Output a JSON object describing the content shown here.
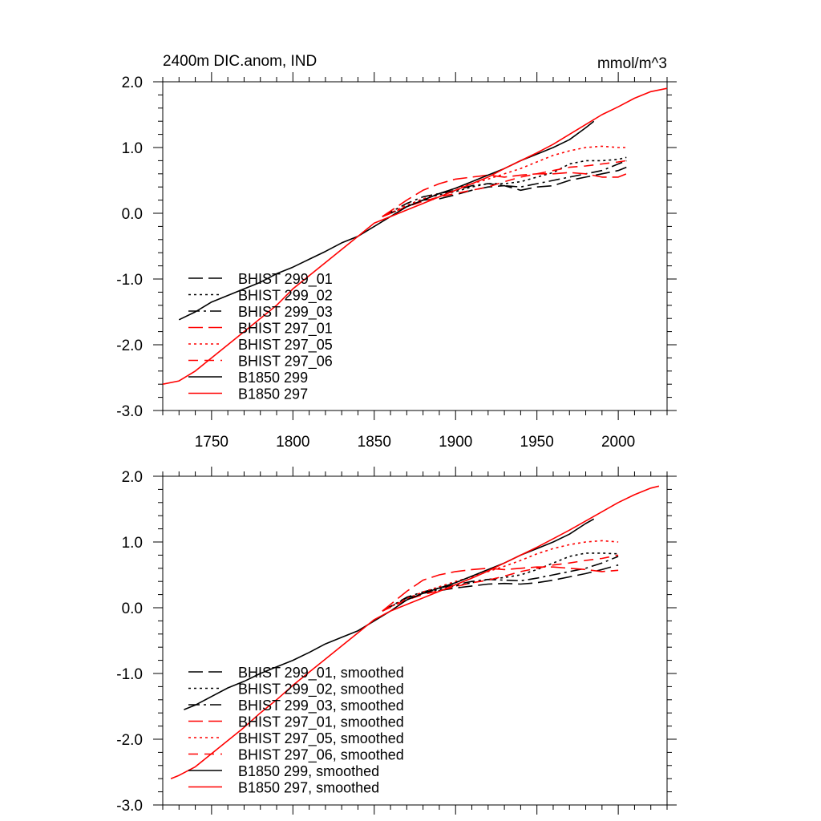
{
  "chart_data": [
    {
      "type": "line",
      "title": "2400m DIC.anom, IND",
      "units_label": "mmol/m^3",
      "xlim": [
        1720,
        2030
      ],
      "ylim": [
        -3.0,
        2.0
      ],
      "x_ticks": [
        1750,
        1800,
        1850,
        1900,
        1950,
        2000
      ],
      "x_tick_labels": [
        "1750",
        "1800",
        "1850",
        "1900",
        "1950",
        "2000"
      ],
      "y_ticks": [
        -3,
        -2,
        -1,
        0,
        1,
        2
      ],
      "y_tick_labels": [
        "-3.0",
        "-2.0",
        "-1.0",
        "0.0",
        "1.0",
        "2.0"
      ],
      "legend_position": "bottom-left",
      "series": [
        {
          "name": "BHIST 299_01",
          "color": "#000000",
          "dash": "long-dash",
          "x": [
            1855,
            1870,
            1880,
            1890,
            1900,
            1910,
            1920,
            1930,
            1940,
            1950,
            1960,
            1970,
            1980,
            1990,
            2000,
            2005
          ],
          "y": [
            -0.05,
            0.1,
            0.2,
            0.22,
            0.28,
            0.35,
            0.4,
            0.42,
            0.35,
            0.4,
            0.42,
            0.5,
            0.55,
            0.6,
            0.65,
            0.7
          ]
        },
        {
          "name": "BHIST 299_02",
          "color": "#000000",
          "dash": "dot",
          "x": [
            1855,
            1870,
            1880,
            1890,
            1900,
            1910,
            1920,
            1930,
            1940,
            1950,
            1960,
            1970,
            1980,
            1990,
            2000,
            2005
          ],
          "y": [
            -0.05,
            0.12,
            0.22,
            0.28,
            0.33,
            0.4,
            0.45,
            0.45,
            0.48,
            0.55,
            0.62,
            0.75,
            0.8,
            0.8,
            0.82,
            0.85
          ]
        },
        {
          "name": "BHIST 299_03",
          "color": "#000000",
          "dash": "dash-dot",
          "x": [
            1855,
            1870,
            1880,
            1890,
            1900,
            1910,
            1920,
            1930,
            1940,
            1950,
            1960,
            1970,
            1980,
            1990,
            2000,
            2005
          ],
          "y": [
            -0.05,
            0.15,
            0.25,
            0.3,
            0.35,
            0.42,
            0.45,
            0.42,
            0.4,
            0.45,
            0.5,
            0.55,
            0.6,
            0.65,
            0.75,
            0.8
          ]
        },
        {
          "name": "BHIST 297_01",
          "color": "#ff0000",
          "dash": "long-dash",
          "x": [
            1855,
            1870,
            1880,
            1890,
            1900,
            1910,
            1920,
            1930,
            1940,
            1950,
            1960,
            1970,
            1980,
            1990,
            2000,
            2005
          ],
          "y": [
            -0.05,
            0.2,
            0.35,
            0.45,
            0.52,
            0.55,
            0.58,
            0.55,
            0.58,
            0.6,
            0.6,
            0.62,
            0.6,
            0.55,
            0.55,
            0.6
          ]
        },
        {
          "name": "BHIST 297_05",
          "color": "#ff0000",
          "dash": "dot",
          "x": [
            1855,
            1870,
            1880,
            1890,
            1900,
            1910,
            1920,
            1930,
            1940,
            1950,
            1960,
            1970,
            1980,
            1990,
            2000,
            2005
          ],
          "y": [
            -0.05,
            0.12,
            0.22,
            0.3,
            0.38,
            0.45,
            0.52,
            0.6,
            0.68,
            0.78,
            0.88,
            0.95,
            1.0,
            1.02,
            1.0,
            1.0
          ]
        },
        {
          "name": "BHIST 297_06",
          "color": "#ff0000",
          "dash": "dash",
          "x": [
            1855,
            1870,
            1880,
            1890,
            1900,
            1910,
            1920,
            1930,
            1940,
            1950,
            1960,
            1970,
            1980,
            1990,
            2000,
            2005
          ],
          "y": [
            -0.05,
            0.1,
            0.18,
            0.25,
            0.3,
            0.35,
            0.4,
            0.48,
            0.55,
            0.6,
            0.65,
            0.7,
            0.72,
            0.75,
            0.78,
            0.8
          ]
        },
        {
          "name": "B1850 299",
          "color": "#000000",
          "dash": "solid",
          "x": [
            1730,
            1740,
            1750,
            1760,
            1770,
            1780,
            1790,
            1800,
            1810,
            1820,
            1830,
            1840,
            1850,
            1860,
            1870,
            1880,
            1890,
            1900,
            1910,
            1920,
            1930,
            1940,
            1950,
            1960,
            1970,
            1980,
            1985
          ],
          "y": [
            -1.62,
            -1.5,
            -1.35,
            -1.25,
            -1.15,
            -1.05,
            -0.92,
            -0.82,
            -0.7,
            -0.58,
            -0.45,
            -0.35,
            -0.2,
            -0.05,
            0.1,
            0.2,
            0.3,
            0.38,
            0.48,
            0.58,
            0.68,
            0.8,
            0.9,
            1.0,
            1.12,
            1.3,
            1.4
          ]
        },
        {
          "name": "B1850 297",
          "color": "#ff0000",
          "dash": "solid",
          "x": [
            1720,
            1730,
            1740,
            1750,
            1760,
            1770,
            1780,
            1790,
            1800,
            1810,
            1820,
            1830,
            1840,
            1850,
            1860,
            1870,
            1880,
            1890,
            1900,
            1910,
            1920,
            1930,
            1940,
            1950,
            1960,
            1970,
            1980,
            1990,
            2000,
            2010,
            2020,
            2030
          ],
          "y": [
            -2.6,
            -2.55,
            -2.4,
            -2.2,
            -2.0,
            -1.8,
            -1.6,
            -1.4,
            -1.15,
            -0.95,
            -0.75,
            -0.55,
            -0.35,
            -0.15,
            -0.05,
            0.05,
            0.15,
            0.25,
            0.35,
            0.45,
            0.55,
            0.68,
            0.8,
            0.92,
            1.05,
            1.2,
            1.35,
            1.5,
            1.62,
            1.75,
            1.85,
            1.9
          ]
        }
      ]
    },
    {
      "type": "line",
      "title": "",
      "xlim": [
        1720,
        2030
      ],
      "ylim": [
        -3.0,
        2.0
      ],
      "x_ticks": [
        1750,
        1800,
        1850,
        1900,
        1950,
        2000
      ],
      "y_ticks": [
        -3,
        -2,
        -1,
        0,
        1,
        2
      ],
      "y_tick_labels": [
        "-3.0",
        "-2.0",
        "-1.0",
        "0.0",
        "1.0",
        "2.0"
      ],
      "legend_position": "bottom-left",
      "series": [
        {
          "name": "BHIST 299_01, smoothed",
          "color": "#000000",
          "dash": "long-dash",
          "x": [
            1855,
            1870,
            1880,
            1890,
            1900,
            1910,
            1920,
            1930,
            1940,
            1950,
            1960,
            1970,
            1980,
            1990,
            2000
          ],
          "y": [
            -0.05,
            0.15,
            0.22,
            0.26,
            0.3,
            0.33,
            0.36,
            0.37,
            0.36,
            0.38,
            0.42,
            0.47,
            0.52,
            0.58,
            0.65
          ]
        },
        {
          "name": "BHIST 299_02, smoothed",
          "color": "#000000",
          "dash": "dot",
          "x": [
            1855,
            1870,
            1880,
            1890,
            1900,
            1910,
            1920,
            1930,
            1940,
            1950,
            1960,
            1970,
            1980,
            1990,
            2000
          ],
          "y": [
            -0.05,
            0.14,
            0.22,
            0.28,
            0.33,
            0.38,
            0.43,
            0.46,
            0.5,
            0.58,
            0.68,
            0.78,
            0.83,
            0.83,
            0.82
          ]
        },
        {
          "name": "BHIST 299_03, smoothed",
          "color": "#000000",
          "dash": "dash-dot",
          "x": [
            1855,
            1870,
            1880,
            1890,
            1900,
            1910,
            1920,
            1930,
            1940,
            1950,
            1960,
            1970,
            1980,
            1990,
            2000
          ],
          "y": [
            -0.05,
            0.16,
            0.24,
            0.3,
            0.35,
            0.4,
            0.43,
            0.42,
            0.41,
            0.45,
            0.5,
            0.55,
            0.6,
            0.68,
            0.78
          ]
        },
        {
          "name": "BHIST 297_01, smoothed",
          "color": "#ff0000",
          "dash": "long-dash",
          "x": [
            1855,
            1870,
            1880,
            1890,
            1900,
            1910,
            1920,
            1930,
            1940,
            1950,
            1960,
            1970,
            1980,
            1990,
            2000
          ],
          "y": [
            -0.05,
            0.25,
            0.42,
            0.5,
            0.55,
            0.58,
            0.6,
            0.58,
            0.6,
            0.62,
            0.62,
            0.6,
            0.58,
            0.55,
            0.57
          ]
        },
        {
          "name": "BHIST 297_05, smoothed",
          "color": "#ff0000",
          "dash": "dot",
          "x": [
            1855,
            1870,
            1880,
            1890,
            1900,
            1910,
            1920,
            1930,
            1940,
            1950,
            1960,
            1970,
            1980,
            1990,
            2000
          ],
          "y": [
            -0.05,
            0.14,
            0.24,
            0.32,
            0.4,
            0.47,
            0.55,
            0.63,
            0.72,
            0.82,
            0.9,
            0.96,
            1.0,
            1.02,
            1.0
          ]
        },
        {
          "name": "BHIST 297_06, smoothed",
          "color": "#ff0000",
          "dash": "dash",
          "x": [
            1855,
            1870,
            1880,
            1890,
            1900,
            1910,
            1920,
            1930,
            1940,
            1950,
            1960,
            1970,
            1980,
            1990,
            2000
          ],
          "y": [
            -0.05,
            0.12,
            0.2,
            0.26,
            0.32,
            0.38,
            0.42,
            0.48,
            0.55,
            0.6,
            0.65,
            0.68,
            0.72,
            0.75,
            0.8
          ]
        },
        {
          "name": "B1850 299, smoothed",
          "color": "#000000",
          "dash": "solid",
          "x": [
            1733,
            1740,
            1750,
            1760,
            1770,
            1780,
            1790,
            1800,
            1810,
            1820,
            1830,
            1840,
            1850,
            1860,
            1870,
            1880,
            1890,
            1900,
            1910,
            1920,
            1930,
            1940,
            1950,
            1960,
            1970,
            1980,
            1985
          ],
          "y": [
            -1.55,
            -1.48,
            -1.35,
            -1.22,
            -1.12,
            -1.0,
            -0.9,
            -0.8,
            -0.68,
            -0.55,
            -0.45,
            -0.35,
            -0.2,
            -0.05,
            0.12,
            0.22,
            0.3,
            0.38,
            0.48,
            0.58,
            0.68,
            0.8,
            0.9,
            1.0,
            1.12,
            1.28,
            1.35
          ]
        },
        {
          "name": "B1850 297, smoothed",
          "color": "#ff0000",
          "dash": "solid",
          "x": [
            1725,
            1730,
            1740,
            1750,
            1760,
            1770,
            1780,
            1790,
            1800,
            1810,
            1820,
            1830,
            1840,
            1850,
            1860,
            1870,
            1880,
            1890,
            1900,
            1910,
            1920,
            1930,
            1940,
            1950,
            1960,
            1970,
            1980,
            1990,
            2000,
            2010,
            2020,
            2025
          ],
          "y": [
            -2.6,
            -2.55,
            -2.42,
            -2.22,
            -2.02,
            -1.82,
            -1.6,
            -1.4,
            -1.18,
            -0.98,
            -0.78,
            -0.58,
            -0.38,
            -0.18,
            -0.05,
            0.05,
            0.15,
            0.25,
            0.35,
            0.45,
            0.56,
            0.68,
            0.8,
            0.92,
            1.05,
            1.18,
            1.32,
            1.46,
            1.6,
            1.72,
            1.82,
            1.85
          ]
        }
      ]
    }
  ]
}
